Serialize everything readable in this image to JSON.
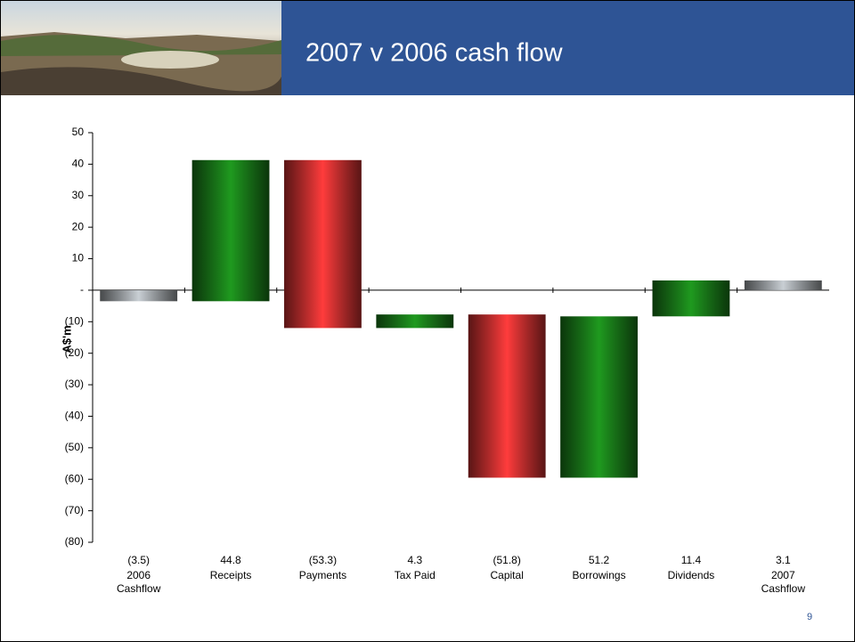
{
  "header": {
    "title": "2007 v 2006 cash flow"
  },
  "page_number": "9",
  "chart_data": {
    "type": "waterfall",
    "y_label": "A$'m",
    "categories": [
      "2006\nCashflow",
      "Receipts",
      "Payments",
      "Tax Paid",
      "Capital",
      "Borrowings",
      "Dividends",
      "2007\nCashflow"
    ],
    "values": [
      -3.5,
      44.8,
      -53.3,
      4.3,
      -51.8,
      51.2,
      11.4,
      3.1
    ],
    "value_labels": [
      "(3.5)",
      "44.8",
      "(53.3)",
      "4.3",
      "(51.8)",
      "51.2",
      "11.4",
      "3.1"
    ],
    "totals": [
      true,
      false,
      false,
      false,
      false,
      false,
      false,
      true
    ],
    "increase_color": "#1f9a1f",
    "decrease_color": "#ff3c3c",
    "total_color": "#c9cfd4",
    "ylim": [
      -80,
      50
    ],
    "yticks": [
      {
        "value": -80,
        "label": "(80)"
      },
      {
        "value": -70,
        "label": "(70)"
      },
      {
        "value": -60,
        "label": "(60)"
      },
      {
        "value": -50,
        "label": "(50)"
      },
      {
        "value": -40,
        "label": "(40)"
      },
      {
        "value": -30,
        "label": "(30)"
      },
      {
        "value": -20,
        "label": "(20)"
      },
      {
        "value": -10,
        "label": "(10)"
      },
      {
        "value": 0,
        "label": "-"
      },
      10,
      20,
      30,
      40,
      50
    ]
  }
}
